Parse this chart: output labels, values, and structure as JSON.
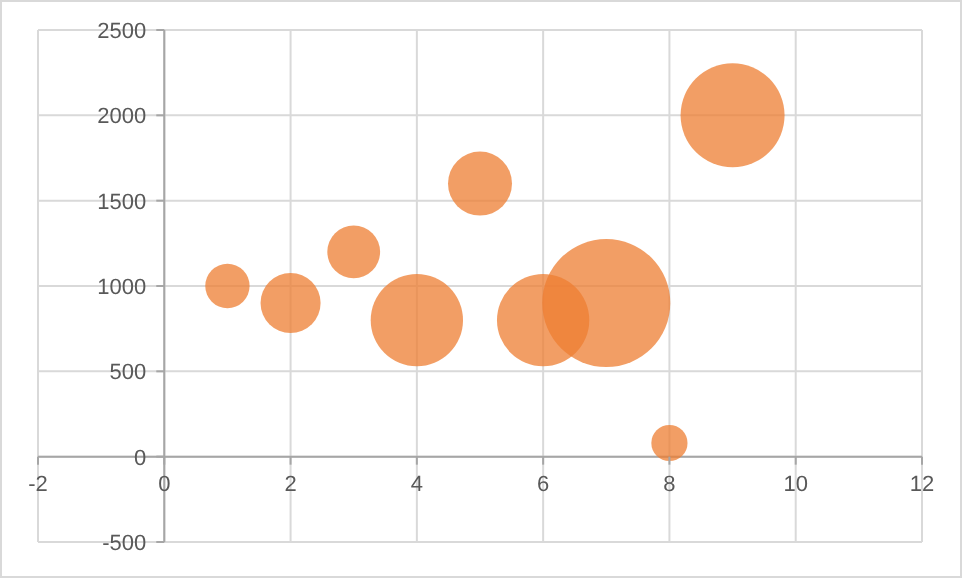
{
  "chart_data": {
    "type": "bubble",
    "x": [
      1,
      2,
      3,
      4,
      5,
      6,
      7,
      8,
      9
    ],
    "values": [
      1000,
      900,
      1200,
      800,
      1600,
      800,
      900,
      80,
      2000
    ],
    "sizes": [
      0.12,
      0.22,
      0.17,
      0.52,
      0.25,
      0.52,
      1,
      0.08,
      0.66
    ],
    "color": "#ed7d31",
    "xlim": [
      -2,
      12
    ],
    "xticks": [
      -2,
      0,
      2,
      4,
      6,
      8,
      10,
      12
    ],
    "ylim": [
      -500,
      2500
    ],
    "yticks": [
      -500,
      0,
      500,
      1000,
      1500,
      2000,
      2500
    ],
    "grid": true
  }
}
